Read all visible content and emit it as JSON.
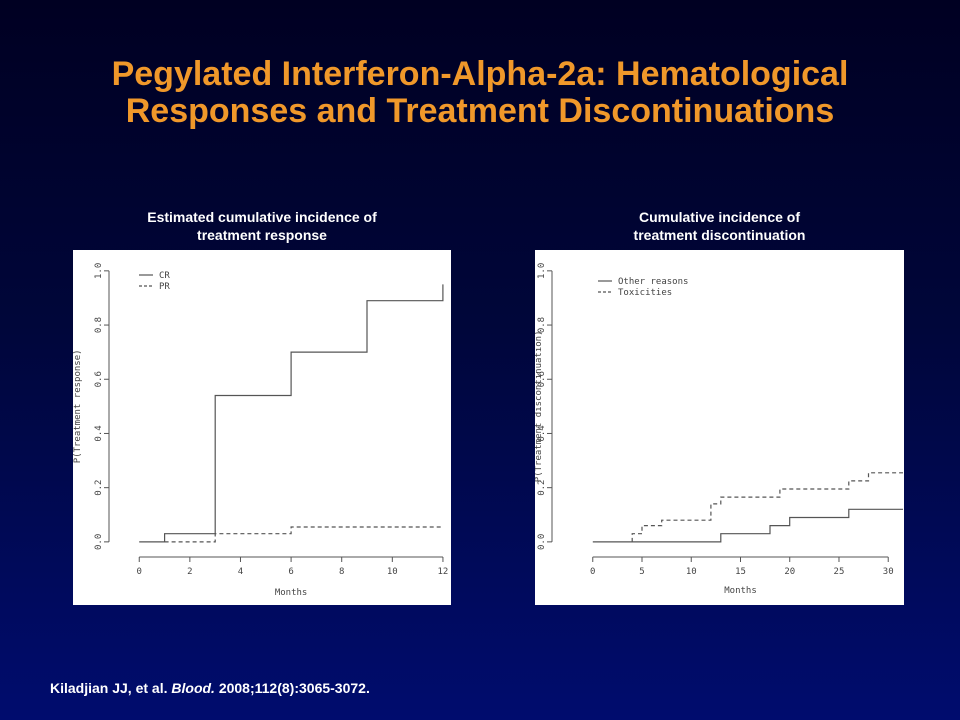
{
  "title": {
    "line1": "Pegylated Interferon-Alpha-2a: Hematological",
    "line2": "Responses and Treatment Discontinuations"
  },
  "colors": {
    "title": "#f0982a",
    "background_top": "#000022",
    "background_bottom": "#000c6e",
    "text": "#ffffff"
  },
  "chart_data": [
    {
      "type": "line",
      "step": true,
      "caption_line1": "Estimated cumulative incidence of",
      "caption_line2": "treatment response",
      "xlabel": "Months",
      "ylabel": "P(Treatment response)",
      "xlim": [
        -0.8,
        12.2
      ],
      "ylim": [
        -0.03,
        1.04
      ],
      "xticks": [
        0,
        2,
        4,
        6,
        8,
        10,
        12
      ],
      "yticks": [
        0.0,
        0.2,
        0.4,
        0.6,
        0.8,
        1.0
      ],
      "ytick_labels": [
        "0.0",
        "0.2",
        "0.4",
        "0.6",
        "0.8",
        "1.0"
      ],
      "legend_position": "top-left",
      "series": [
        {
          "name": "CR",
          "dash": "solid",
          "points": [
            [
              0,
              0
            ],
            [
              1,
              0
            ],
            [
              1,
              0.03
            ],
            [
              3,
              0.03
            ],
            [
              3,
              0.54
            ],
            [
              6,
              0.54
            ],
            [
              6,
              0.7
            ],
            [
              9,
              0.7
            ],
            [
              9,
              0.89
            ],
            [
              12,
              0.89
            ],
            [
              12,
              0.95
            ]
          ]
        },
        {
          "name": "PR",
          "dash": "dashed",
          "points": [
            [
              1,
              0
            ],
            [
              3,
              0
            ],
            [
              3,
              0.03
            ],
            [
              6,
              0.03
            ],
            [
              6,
              0.055
            ],
            [
              12,
              0.055
            ]
          ]
        }
      ]
    },
    {
      "type": "line",
      "step": true,
      "caption_line1": "Cumulative incidence of",
      "caption_line2": "treatment discontinuation",
      "xlabel": "Months",
      "ylabel": "P(Treatment discontinuation)",
      "xlim": [
        -1.6,
        31.5
      ],
      "ylim": [
        -0.03,
        1.04
      ],
      "xticks": [
        0,
        5,
        10,
        15,
        20,
        25,
        30
      ],
      "yticks": [
        0.0,
        0.2,
        0.4,
        0.6,
        0.8,
        1.0
      ],
      "ytick_labels": [
        "0.0",
        "0.2",
        "0.4",
        "0.6",
        "0.8",
        "1.0"
      ],
      "legend_position": "top-left",
      "series": [
        {
          "name": "Other reasons",
          "dash": "solid",
          "points": [
            [
              0,
              0
            ],
            [
              13,
              0
            ],
            [
              13,
              0.03
            ],
            [
              18,
              0.03
            ],
            [
              18,
              0.06
            ],
            [
              20,
              0.06
            ],
            [
              20,
              0.09
            ],
            [
              26,
              0.09
            ],
            [
              26,
              0.12
            ],
            [
              31.5,
              0.12
            ]
          ]
        },
        {
          "name": "Toxicities",
          "dash": "dashed",
          "points": [
            [
              4,
              0
            ],
            [
              4,
              0.03
            ],
            [
              5,
              0.03
            ],
            [
              5,
              0.06
            ],
            [
              7,
              0.06
            ],
            [
              7,
              0.08
            ],
            [
              12,
              0.08
            ],
            [
              12,
              0.14
            ],
            [
              13,
              0.14
            ],
            [
              13,
              0.165
            ],
            [
              19,
              0.165
            ],
            [
              19,
              0.195
            ],
            [
              26,
              0.195
            ],
            [
              26,
              0.225
            ],
            [
              28,
              0.225
            ],
            [
              28,
              0.255
            ],
            [
              31.5,
              0.255
            ]
          ]
        }
      ]
    }
  ],
  "footer": {
    "authors": "Kiladjian JJ, et al. ",
    "journal": "Blood.",
    "citation": " 2008;112(8):3065-3072."
  }
}
